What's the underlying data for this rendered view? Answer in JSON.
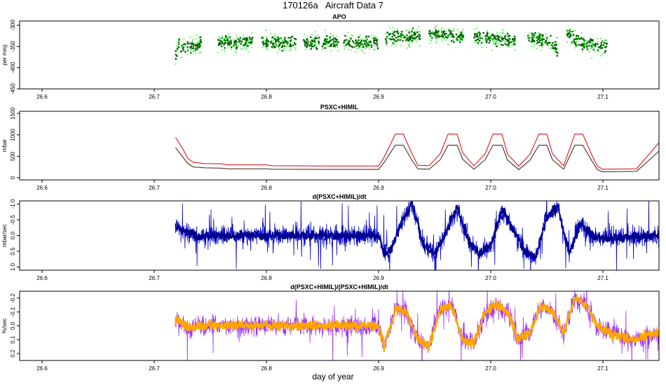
{
  "title": "170126a   Aircraft Data 7",
  "xlabel": "day of year",
  "x_ticks": [
    "26.6",
    "26.7",
    "26.8",
    "26.9",
    "27.0",
    "27.1"
  ],
  "chart_data": [
    {
      "type": "scatter",
      "title": "APO",
      "ylabel": "per meg",
      "xlim": [
        26.58,
        27.15
      ],
      "ylim": [
        -450,
        -290
      ],
      "y_reversed": false,
      "y_ticks": [
        -300,
        -350,
        -400,
        -450
      ],
      "y_tick_labels": [
        "-300",
        "-350",
        "-400",
        "-450"
      ],
      "colors": {
        "bright": "#22ee22",
        "dark": "#006400"
      },
      "series": [
        {
          "segments": [
            [
              26.719,
              26.742
            ],
            [
              26.757,
              26.788
            ],
            [
              26.796,
              26.827
            ],
            [
              26.833,
              26.864
            ],
            [
              26.869,
              26.9
            ],
            [
              26.906,
              26.937
            ],
            [
              26.945,
              26.976
            ],
            [
              26.985,
              27.022
            ],
            [
              27.033,
              27.06
            ],
            [
              27.068,
              27.104
            ]
          ],
          "points": [
            [
              26.719,
              -385
            ],
            [
              26.722,
              -355
            ],
            [
              26.73,
              -350
            ],
            [
              26.74,
              -345
            ],
            [
              26.76,
              -340
            ],
            [
              26.78,
              -340
            ],
            [
              26.8,
              -340
            ],
            [
              26.82,
              -343
            ],
            [
              26.84,
              -343
            ],
            [
              26.86,
              -340
            ],
            [
              26.88,
              -342
            ],
            [
              26.9,
              -340
            ],
            [
              26.91,
              -330
            ],
            [
              26.93,
              -325
            ],
            [
              26.95,
              -320
            ],
            [
              26.97,
              -325
            ],
            [
              26.99,
              -330
            ],
            [
              27.0,
              -330
            ],
            [
              27.02,
              -335
            ],
            [
              27.04,
              -330
            ],
            [
              27.05,
              -340
            ],
            [
              27.06,
              -355
            ],
            [
              27.07,
              -320
            ],
            [
              27.08,
              -340
            ],
            [
              27.1,
              -348
            ]
          ]
        }
      ]
    },
    {
      "type": "line",
      "title": "PSXC+HIMIL",
      "ylabel": "mbar",
      "xlim": [
        26.58,
        27.15
      ],
      "ylim": [
        -50,
        1550
      ],
      "y_reversed": false,
      "y_ticks": [
        0,
        500,
        1000,
        1500
      ],
      "y_tick_labels": [
        "0",
        "500",
        "1000",
        "1500"
      ],
      "series": [
        {
          "name": "",
          "color": "#dd0000",
          "x": [
            26.719,
            26.725,
            26.73,
            26.735,
            26.745,
            26.76,
            26.765,
            26.8,
            26.805,
            26.85,
            26.9,
            26.905,
            26.915,
            26.922,
            26.93,
            26.935,
            26.945,
            26.955,
            26.962,
            26.97,
            26.975,
            26.985,
            26.995,
            27.002,
            27.01,
            27.015,
            27.025,
            27.035,
            27.043,
            27.05,
            27.055,
            27.065,
            27.075,
            27.082,
            27.09,
            27.095,
            27.1,
            27.13,
            27.15
          ],
          "y": [
            940,
            700,
            450,
            360,
            330,
            325,
            300,
            300,
            280,
            275,
            275,
            480,
            1020,
            1020,
            550,
            290,
            280,
            560,
            1020,
            1020,
            580,
            280,
            560,
            1020,
            1020,
            550,
            270,
            550,
            1020,
            1020,
            560,
            280,
            1020,
            1020,
            540,
            270,
            200,
            210,
            820
          ]
        },
        {
          "name": "",
          "color": "#3a1a1a",
          "x": [
            26.719,
            26.725,
            26.73,
            26.735,
            26.745,
            26.76,
            26.765,
            26.8,
            26.805,
            26.85,
            26.9,
            26.905,
            26.915,
            26.922,
            26.93,
            26.935,
            26.945,
            26.955,
            26.962,
            26.97,
            26.975,
            26.985,
            26.995,
            27.002,
            27.01,
            27.015,
            27.025,
            27.035,
            27.043,
            27.05,
            27.055,
            27.065,
            27.075,
            27.082,
            27.09,
            27.095,
            27.1,
            27.13,
            27.15
          ],
          "y": [
            700,
            500,
            330,
            250,
            230,
            225,
            210,
            210,
            200,
            195,
            195,
            360,
            760,
            760,
            400,
            210,
            200,
            420,
            760,
            760,
            430,
            200,
            420,
            760,
            760,
            410,
            190,
            410,
            760,
            760,
            420,
            200,
            760,
            760,
            400,
            190,
            140,
            150,
            620
          ]
        }
      ]
    },
    {
      "type": "line",
      "title": "d(PSXC+HIMIL)/dt",
      "ylabel": "mbar/sec",
      "xlim": [
        26.58,
        27.15
      ],
      "ylim": [
        1.1,
        -1.1
      ],
      "y_reversed": true,
      "y_ticks": [
        -1.0,
        -0.5,
        0.0,
        0.5,
        1.0
      ],
      "y_tick_labels": [
        "-1.0",
        "-0.5",
        "0.0",
        "0.5",
        "1.0"
      ],
      "colors": {
        "trace": "#0000cc",
        "dense": "#00008b"
      },
      "series": [
        {
          "x": [
            26.719,
            26.73,
            26.74,
            26.76,
            26.8,
            26.85,
            26.9,
            26.905,
            26.912,
            26.92,
            26.93,
            26.94,
            26.95,
            26.96,
            26.97,
            26.98,
            26.99,
            27.0,
            27.01,
            27.02,
            27.03,
            27.04,
            27.05,
            27.06,
            27.07,
            27.08,
            27.09,
            27.1,
            27.12,
            27.15
          ],
          "y": [
            -0.3,
            -0.1,
            0.05,
            0.0,
            0.0,
            0.0,
            0.0,
            0.6,
            0.4,
            -0.4,
            -1.0,
            0.3,
            0.6,
            -0.1,
            -0.9,
            0.2,
            0.6,
            0.3,
            -0.8,
            -0.2,
            0.5,
            0.7,
            -0.6,
            -0.9,
            0.6,
            -0.4,
            0.0,
            0.1,
            0.05,
            0.0
          ]
        }
      ]
    },
    {
      "type": "line",
      "title": "d(PSXC+HIMIL)/(PSXC+HIMIL)/dt",
      "ylabel": "%/sec",
      "xlim": [
        26.58,
        27.15
      ],
      "ylim": [
        0.25,
        -0.25
      ],
      "y_reversed": true,
      "y_ticks": [
        -0.2,
        -0.1,
        0.0,
        0.1,
        0.2
      ],
      "y_tick_labels": [
        "-0.2",
        "-0.1",
        "0.0",
        "0.1",
        "0.2"
      ],
      "colors": {
        "trace": "#9b30ff",
        "overlay": "#ffa500"
      },
      "series": [
        {
          "x": [
            26.719,
            26.73,
            26.74,
            26.76,
            26.8,
            26.85,
            26.9,
            26.905,
            26.915,
            26.925,
            26.935,
            26.945,
            26.955,
            26.965,
            26.975,
            26.985,
            26.995,
            27.005,
            27.015,
            27.025,
            27.035,
            27.045,
            27.055,
            27.065,
            27.075,
            27.085,
            27.095,
            27.105,
            27.125,
            27.15
          ],
          "y": [
            -0.05,
            0.02,
            0.0,
            0.0,
            0.0,
            0.0,
            0.0,
            0.15,
            -0.12,
            -0.1,
            0.1,
            0.15,
            -0.12,
            -0.15,
            0.1,
            0.12,
            -0.1,
            -0.15,
            -0.1,
            0.1,
            0.05,
            -0.15,
            -0.1,
            0.05,
            -0.2,
            -0.15,
            0.0,
            0.05,
            0.1,
            0.05
          ]
        }
      ]
    }
  ]
}
